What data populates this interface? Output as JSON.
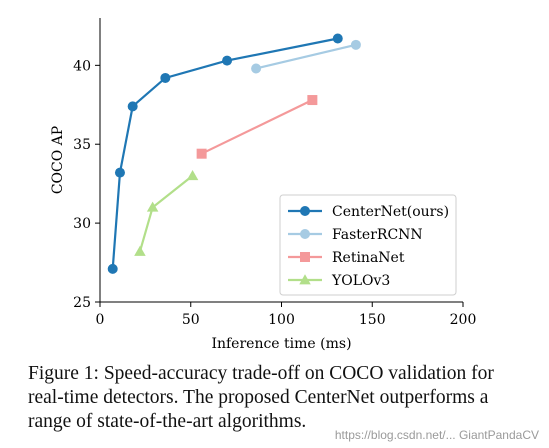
{
  "chart_data": {
    "type": "line",
    "xlabel": "Inference time (ms)",
    "ylabel": "COCO AP",
    "xlim": [
      0,
      200
    ],
    "ylim": [
      25,
      43
    ],
    "xticks": [
      0,
      50,
      100,
      150,
      200
    ],
    "yticks": [
      25,
      30,
      35,
      40
    ],
    "grid": false,
    "legend_position": "bottom-right",
    "series": [
      {
        "name": "CenterNet(ours)",
        "color": "#1f77b4",
        "marker": "circle",
        "x": [
          7,
          11,
          18,
          36,
          70,
          131
        ],
        "y": [
          27.1,
          33.2,
          37.4,
          39.2,
          40.3,
          41.7
        ]
      },
      {
        "name": "FasterRCNN",
        "color": "#a6cbe3",
        "marker": "circle",
        "x": [
          86,
          141
        ],
        "y": [
          39.8,
          41.3
        ]
      },
      {
        "name": "RetinaNet",
        "color": "#f4999a",
        "marker": "square",
        "x": [
          56,
          117
        ],
        "y": [
          34.4,
          37.8
        ]
      },
      {
        "name": "YOLOv3",
        "color": "#b2df8a",
        "marker": "triangle",
        "x": [
          22,
          29,
          51
        ],
        "y": [
          28.2,
          31.0,
          33.0
        ]
      }
    ]
  },
  "caption": "Figure 1: Speed-accuracy trade-off on COCO validation for real-time detectors. The proposed CenterNet outperforms a range of state-of-the-art algorithms.",
  "watermark": "https://blog.csdn.net/... GiantPandaCV"
}
